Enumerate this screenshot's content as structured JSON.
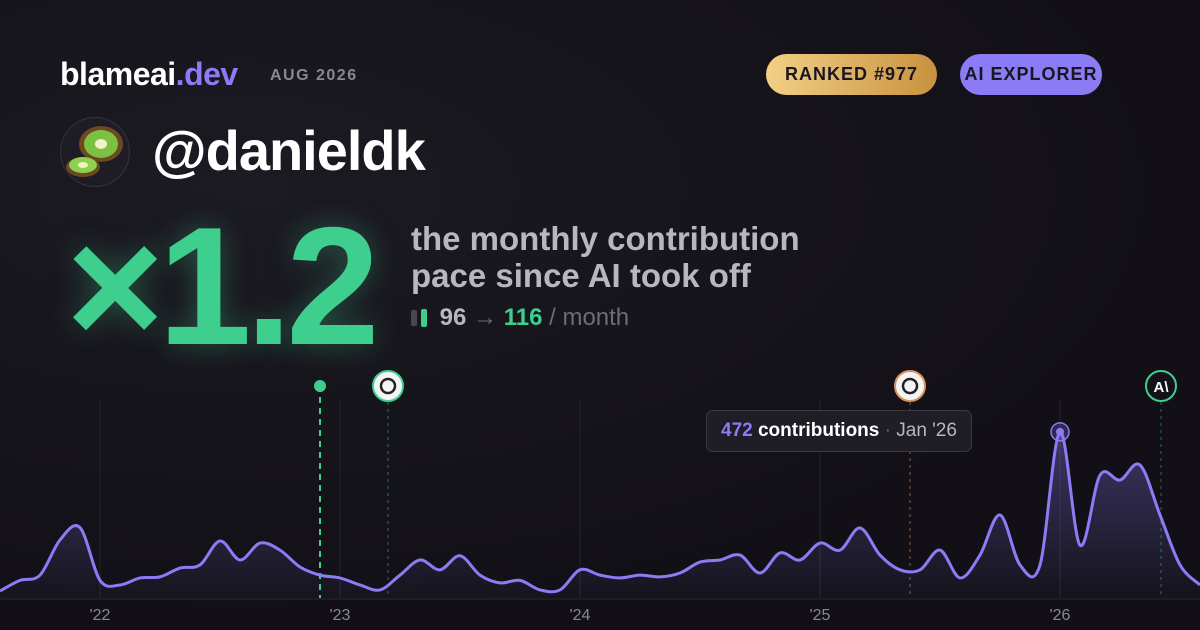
{
  "header": {
    "brand": "blameai",
    "brand_suffix": ".dev",
    "period": "AUG 2026",
    "badges": [
      "RANKED #977",
      "AI EXPLORER"
    ]
  },
  "profile": {
    "handle": "@danieldk"
  },
  "headline": {
    "multiplier": "×1.2",
    "caption_lines": [
      "the monthly contribution",
      "pace since AI took off"
    ],
    "before": "96",
    "arrow": "→",
    "after": "116",
    "unit": "/ month"
  },
  "tooltip": {
    "label": "contributions",
    "separator": "·",
    "date": "Jan '26"
  },
  "event_icon_text": "A\\",
  "chart_data": {
    "type": "line",
    "categories": [
      null,
      null,
      null,
      null,
      null,
      "'22",
      null,
      null,
      null,
      null,
      null,
      null,
      null,
      null,
      null,
      null,
      null,
      "'23",
      null,
      null,
      null,
      null,
      null,
      null,
      null,
      null,
      null,
      null,
      null,
      "'24",
      null,
      null,
      null,
      null,
      null,
      null,
      null,
      null,
      null,
      null,
      null,
      "'25",
      null,
      null,
      null,
      null,
      null,
      null,
      null,
      null,
      null,
      null,
      null,
      "'26",
      null,
      null,
      null,
      null,
      null,
      null,
      null
    ],
    "series": [
      {
        "name": "contributions",
        "color": "#8b7cf6",
        "values": [
          20,
          50,
          65,
          165,
          200,
          50,
          37,
          57,
          60,
          85,
          94,
          162,
          108,
          156,
          136,
          88,
          65,
          57,
          37,
          23,
          65,
          108,
          80,
          120,
          65,
          43,
          50,
          23,
          23,
          80,
          65,
          57,
          65,
          60,
          71,
          102,
          108,
          122,
          71,
          128,
          108,
          156,
          136,
          199,
          122,
          80,
          80,
          136,
          57,
          122,
          236,
          94,
          94,
          472,
          150,
          349,
          335,
          378,
          236,
          94,
          37
        ]
      }
    ],
    "ylim": [
      0,
      500
    ],
    "highlight_index": 53
  }
}
